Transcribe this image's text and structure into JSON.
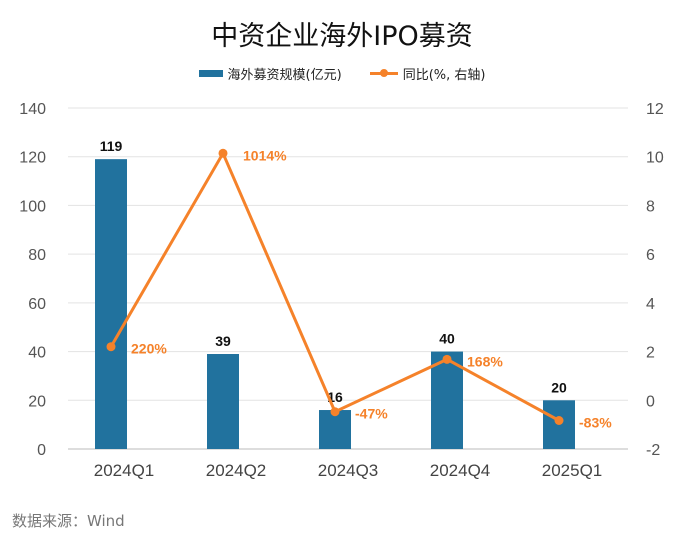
{
  "chart_data": {
    "type": "bar+line",
    "title": "中资企业海外IPO募资",
    "categories": [
      "2024Q1",
      "2024Q2",
      "2024Q3",
      "2024Q4",
      "2025Q1"
    ],
    "series": [
      {
        "name": "海外募资规模(亿元)",
        "type": "bar",
        "axis": "left",
        "values": [
          119,
          39,
          16,
          40,
          20
        ],
        "labels": [
          "119",
          "39",
          "16",
          "40",
          "20"
        ],
        "color": "#21729e"
      },
      {
        "name": "同比(%, 右轴)",
        "type": "line",
        "axis": "right",
        "values": [
          2.2,
          10.14,
          -0.47,
          1.68,
          -0.83
        ],
        "labels": [
          "220%",
          "1014%",
          "-47%",
          "168%",
          "-83%"
        ],
        "color": "#f5822a"
      }
    ],
    "left_axis": {
      "ylim": [
        0,
        140
      ],
      "ticks": [
        "0",
        "20",
        "40",
        "60",
        "80",
        "100",
        "120",
        "140"
      ]
    },
    "right_axis": {
      "ylim": [
        -2,
        12
      ],
      "ticks": [
        "-2",
        "0",
        "2",
        "4",
        "6",
        "8",
        "10",
        "12"
      ]
    },
    "grid": true,
    "legend_position": "top"
  },
  "source": "数据来源：Wind"
}
